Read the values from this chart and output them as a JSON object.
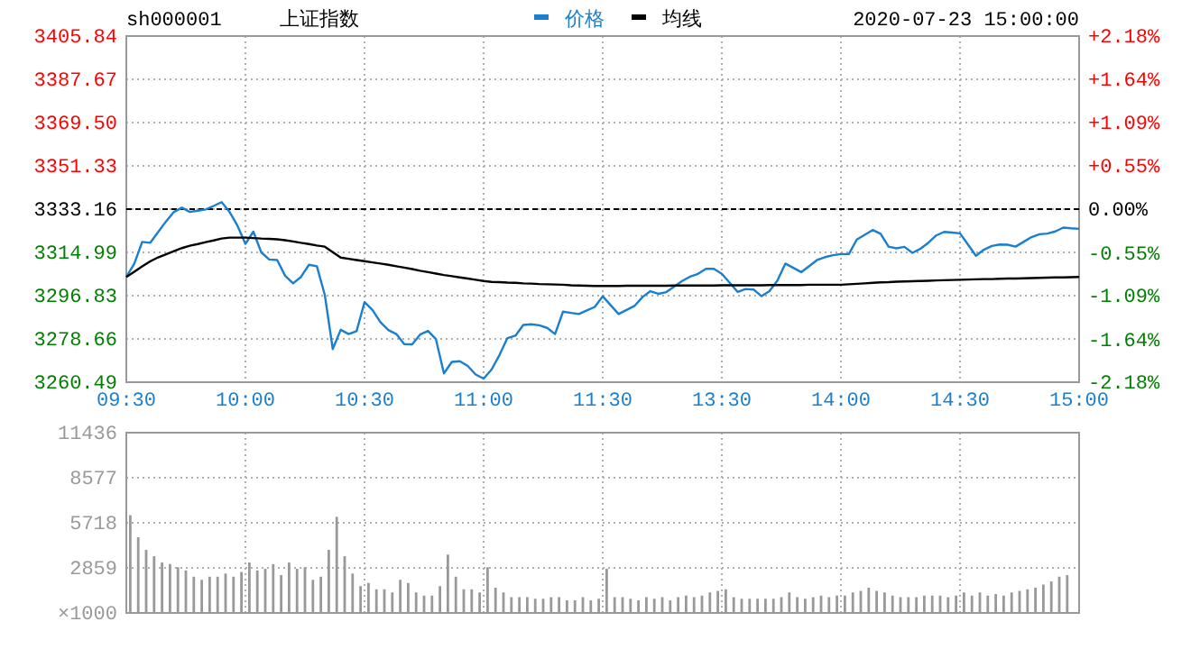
{
  "chart_data": [
    {
      "type": "line",
      "title": "上证指数",
      "annotations": [
        "sh000001",
        "2020-07-23 15:00:00"
      ],
      "legend": "top",
      "grid": true,
      "categories": [
        "09:30",
        null,
        null,
        null,
        null,
        null,
        null,
        null,
        null,
        null,
        null,
        null,
        null,
        null,
        null,
        "10:00",
        null,
        null,
        null,
        null,
        null,
        null,
        null,
        null,
        null,
        null,
        null,
        null,
        null,
        null,
        "10:30",
        null,
        null,
        null,
        null,
        null,
        null,
        null,
        null,
        null,
        null,
        null,
        null,
        null,
        null,
        "11:00",
        null,
        null,
        null,
        null,
        null,
        null,
        null,
        null,
        null,
        null,
        null,
        null,
        null,
        null,
        "11:30",
        null,
        null,
        null,
        null,
        null,
        null,
        null,
        null,
        null,
        null,
        null,
        null,
        null,
        null,
        "13:30",
        null,
        null,
        null,
        null,
        null,
        null,
        null,
        null,
        null,
        null,
        null,
        null,
        null,
        null,
        "14:00",
        null,
        null,
        null,
        null,
        null,
        null,
        null,
        null,
        null,
        null,
        null,
        null,
        null,
        null,
        "14:30",
        null,
        null,
        null,
        null,
        null,
        null,
        null,
        null,
        null,
        null,
        null,
        null,
        null,
        null,
        "15:00"
      ],
      "ylim": [
        3260.49,
        3405.84
      ],
      "yticks": [
        3260.49,
        3278.66,
        3296.83,
        3314.99,
        3333.16,
        3351.33,
        {
          "value": 3369.5,
          "label": "3369.50"
        },
        3387.67,
        3405.84
      ],
      "y2lim": [
        -2.18,
        2.18
      ],
      "y2ticks": [
        {
          "value": -2.18,
          "label": "-2.18%"
        },
        {
          "value": -1.64,
          "label": "-1.64%"
        },
        {
          "value": -1.09,
          "label": "-1.09%"
        },
        {
          "value": -0.55,
          "label": "-0.55%"
        },
        {
          "value": 0,
          "label": "0.00%"
        },
        {
          "value": 0.55,
          "label": "+0.55%"
        },
        {
          "value": 1.09,
          "label": "+1.09%"
        },
        {
          "value": 1.64,
          "label": "+1.64%"
        },
        {
          "value": 2.18,
          "label": "+2.18%"
        }
      ],
      "ref_lines": [
        {
          "axis": "y",
          "value": 3333.16,
          "color": "#000000",
          "line_style": "dashed"
        }
      ],
      "series": [
        {
          "name": "价格",
          "color": "#1a7fcf",
          "values": [
            3304.7,
            3310.2,
            3319.4,
            3319.0,
            3323.5,
            3328.0,
            3332.0,
            3333.8,
            3332.0,
            3332.5,
            3333.0,
            3334.5,
            3336.1,
            3332.0,
            3326.2,
            3318.6,
            3323.7,
            3315.0,
            3312.0,
            3311.8,
            3305.2,
            3302.0,
            3304.7,
            3309.8,
            3309.2,
            3297.1,
            3274.4,
            3282.5,
            3280.7,
            3281.9,
            3294.1,
            3290.8,
            3285.7,
            3282.4,
            3280.7,
            3276.5,
            3276.4,
            3280.5,
            3282.0,
            3278.5,
            3264.2,
            3269.0,
            3269.3,
            3267.3,
            3263.7,
            3262.0,
            3265.8,
            3271.9,
            3279.0,
            3280.0,
            3284.5,
            3284.8,
            3284.4,
            3283.3,
            3280.7,
            3290.1,
            3289.6,
            3289.1,
            3290.6,
            3292.1,
            3296.6,
            3292.8,
            3289.1,
            3290.8,
            3292.5,
            3296.2,
            3298.7,
            3297.6,
            3298.3,
            3300.6,
            3303.0,
            3304.8,
            3306.0,
            3308.1,
            3308.1,
            3306.0,
            3302.2,
            3298.4,
            3299.6,
            3299.4,
            3296.6,
            3298.7,
            3303.2,
            3310.3,
            3308.5,
            3306.7,
            3309.2,
            3311.8,
            3313.0,
            3313.8,
            3314.3,
            3314.3,
            3320.4,
            3322.4,
            3324.4,
            3322.8,
            3317.4,
            3316.7,
            3317.3,
            3314.8,
            3316.5,
            3319.0,
            3322.1,
            3323.6,
            3323.3,
            3323.0,
            3318.3,
            3313.6,
            3316.1,
            3317.7,
            3318.3,
            3318.2,
            3317.4,
            3319.4,
            3321.4,
            3322.6,
            3322.9,
            3323.8,
            3325.4,
            3325.1,
            3324.9
          ]
        },
        {
          "name": "均线",
          "color": "#000000",
          "values": [
            3304.7,
            3306.9,
            3309.1,
            3311.2,
            3312.9,
            3314.2,
            3315.5,
            3316.8,
            3317.8,
            3318.5,
            3319.3,
            3320.0,
            3320.8,
            3321.2,
            3321.2,
            3321.2,
            3321.0,
            3320.8,
            3320.7,
            3320.5,
            3320.1,
            3319.6,
            3319.0,
            3318.5,
            3317.9,
            3317.4,
            3315.1,
            3312.8,
            3312.3,
            3311.8,
            3311.3,
            3310.8,
            3310.3,
            3309.8,
            3309.2,
            3308.6,
            3308.0,
            3307.3,
            3306.7,
            3306.1,
            3305.5,
            3305.0,
            3304.5,
            3304.0,
            3303.5,
            3303.0,
            3302.6,
            3302.5,
            3302.3,
            3302.2,
            3302.0,
            3301.9,
            3301.7,
            3301.6,
            3301.5,
            3301.4,
            3301.2,
            3301.1,
            3301.0,
            3300.9,
            3300.9,
            3300.9,
            3300.9,
            3301.0,
            3301.0,
            3301.0,
            3301.0,
            3301.0,
            3301.0,
            3301.1,
            3301.1,
            3301.1,
            3301.1,
            3301.1,
            3301.1,
            3301.2,
            3301.2,
            3301.2,
            3301.2,
            3301.2,
            3301.2,
            3301.3,
            3301.3,
            3301.3,
            3301.3,
            3301.3,
            3301.4,
            3301.4,
            3301.4,
            3301.4,
            3301.4,
            3301.6,
            3301.8,
            3302.0,
            3302.2,
            3302.4,
            3302.5,
            3302.7,
            3302.8,
            3302.9,
            3303.0,
            3303.1,
            3303.2,
            3303.3,
            3303.4,
            3303.5,
            3303.6,
            3303.7,
            3303.8,
            3303.8,
            3303.9,
            3304.0,
            3304.0,
            3304.1,
            3304.2,
            3304.3,
            3304.4,
            3304.5,
            3304.5,
            3304.6,
            3304.7
          ]
        }
      ]
    },
    {
      "type": "bar",
      "color": "#999999",
      "grid": true,
      "tick_labels": "y",
      "ylabel": "×1000",
      "categories": [
        null,
        null,
        null,
        null,
        null,
        null,
        null,
        null,
        null,
        null,
        null,
        null,
        null,
        null,
        null,
        null,
        null,
        null,
        null,
        null,
        null,
        null,
        null,
        null,
        null,
        null,
        null,
        null,
        null,
        null,
        null,
        null,
        null,
        null,
        null,
        null,
        null,
        null,
        null,
        null,
        null,
        null,
        null,
        null,
        null,
        null,
        null,
        null,
        null,
        null,
        null,
        null,
        null,
        null,
        null,
        null,
        null,
        null,
        null,
        null,
        null,
        null,
        null,
        null,
        null,
        null,
        null,
        null,
        null,
        null,
        null,
        null,
        null,
        null,
        null,
        null,
        null,
        null,
        null,
        null,
        null,
        null,
        null,
        null,
        null,
        null,
        null,
        null,
        null,
        null,
        null,
        null,
        null,
        null,
        null,
        null,
        null,
        null,
        null,
        null,
        null,
        null,
        null,
        null,
        null,
        null,
        null,
        null,
        null,
        null,
        null,
        null,
        null,
        null,
        null,
        null,
        null,
        null,
        null,
        null
      ],
      "ylim": [
        0,
        11436
      ],
      "yticks": [
        {
          "value": 0,
          "label": null
        },
        2859,
        5718,
        8577,
        11436
      ],
      "values": [
        6200,
        4800,
        4000,
        3600,
        3200,
        3100,
        2900,
        2700,
        2300,
        2100,
        2300,
        2300,
        2500,
        2300,
        2600,
        3200,
        2700,
        2800,
        3100,
        2400,
        3200,
        2800,
        2900,
        2100,
        2300,
        4000,
        6100,
        3600,
        2500,
        1700,
        1900,
        1500,
        1500,
        1300,
        2100,
        1900,
        1300,
        1100,
        1100,
        1700,
        3700,
        2300,
        1500,
        1500,
        1300,
        2900,
        1600,
        1300,
        1000,
        1000,
        1000,
        900,
        900,
        1000,
        1000,
        800,
        800,
        1000,
        800,
        900,
        2800,
        1000,
        1000,
        900,
        800,
        1000,
        900,
        1000,
        800,
        1000,
        1100,
        1000,
        1100,
        1300,
        1400,
        1500,
        1000,
        900,
        900,
        900,
        900,
        900,
        1000,
        1300,
        1000,
        900,
        1000,
        1100,
        1000,
        1100,
        1100,
        1300,
        1400,
        1600,
        1400,
        1300,
        1100,
        1000,
        1000,
        1000,
        1100,
        1100,
        1100,
        1000,
        1100,
        1300,
        1100,
        1300,
        1100,
        1200,
        1100,
        1300,
        1400,
        1500,
        1600,
        1800,
        2000,
        2300,
        2400,
        null
      ]
    }
  ]
}
